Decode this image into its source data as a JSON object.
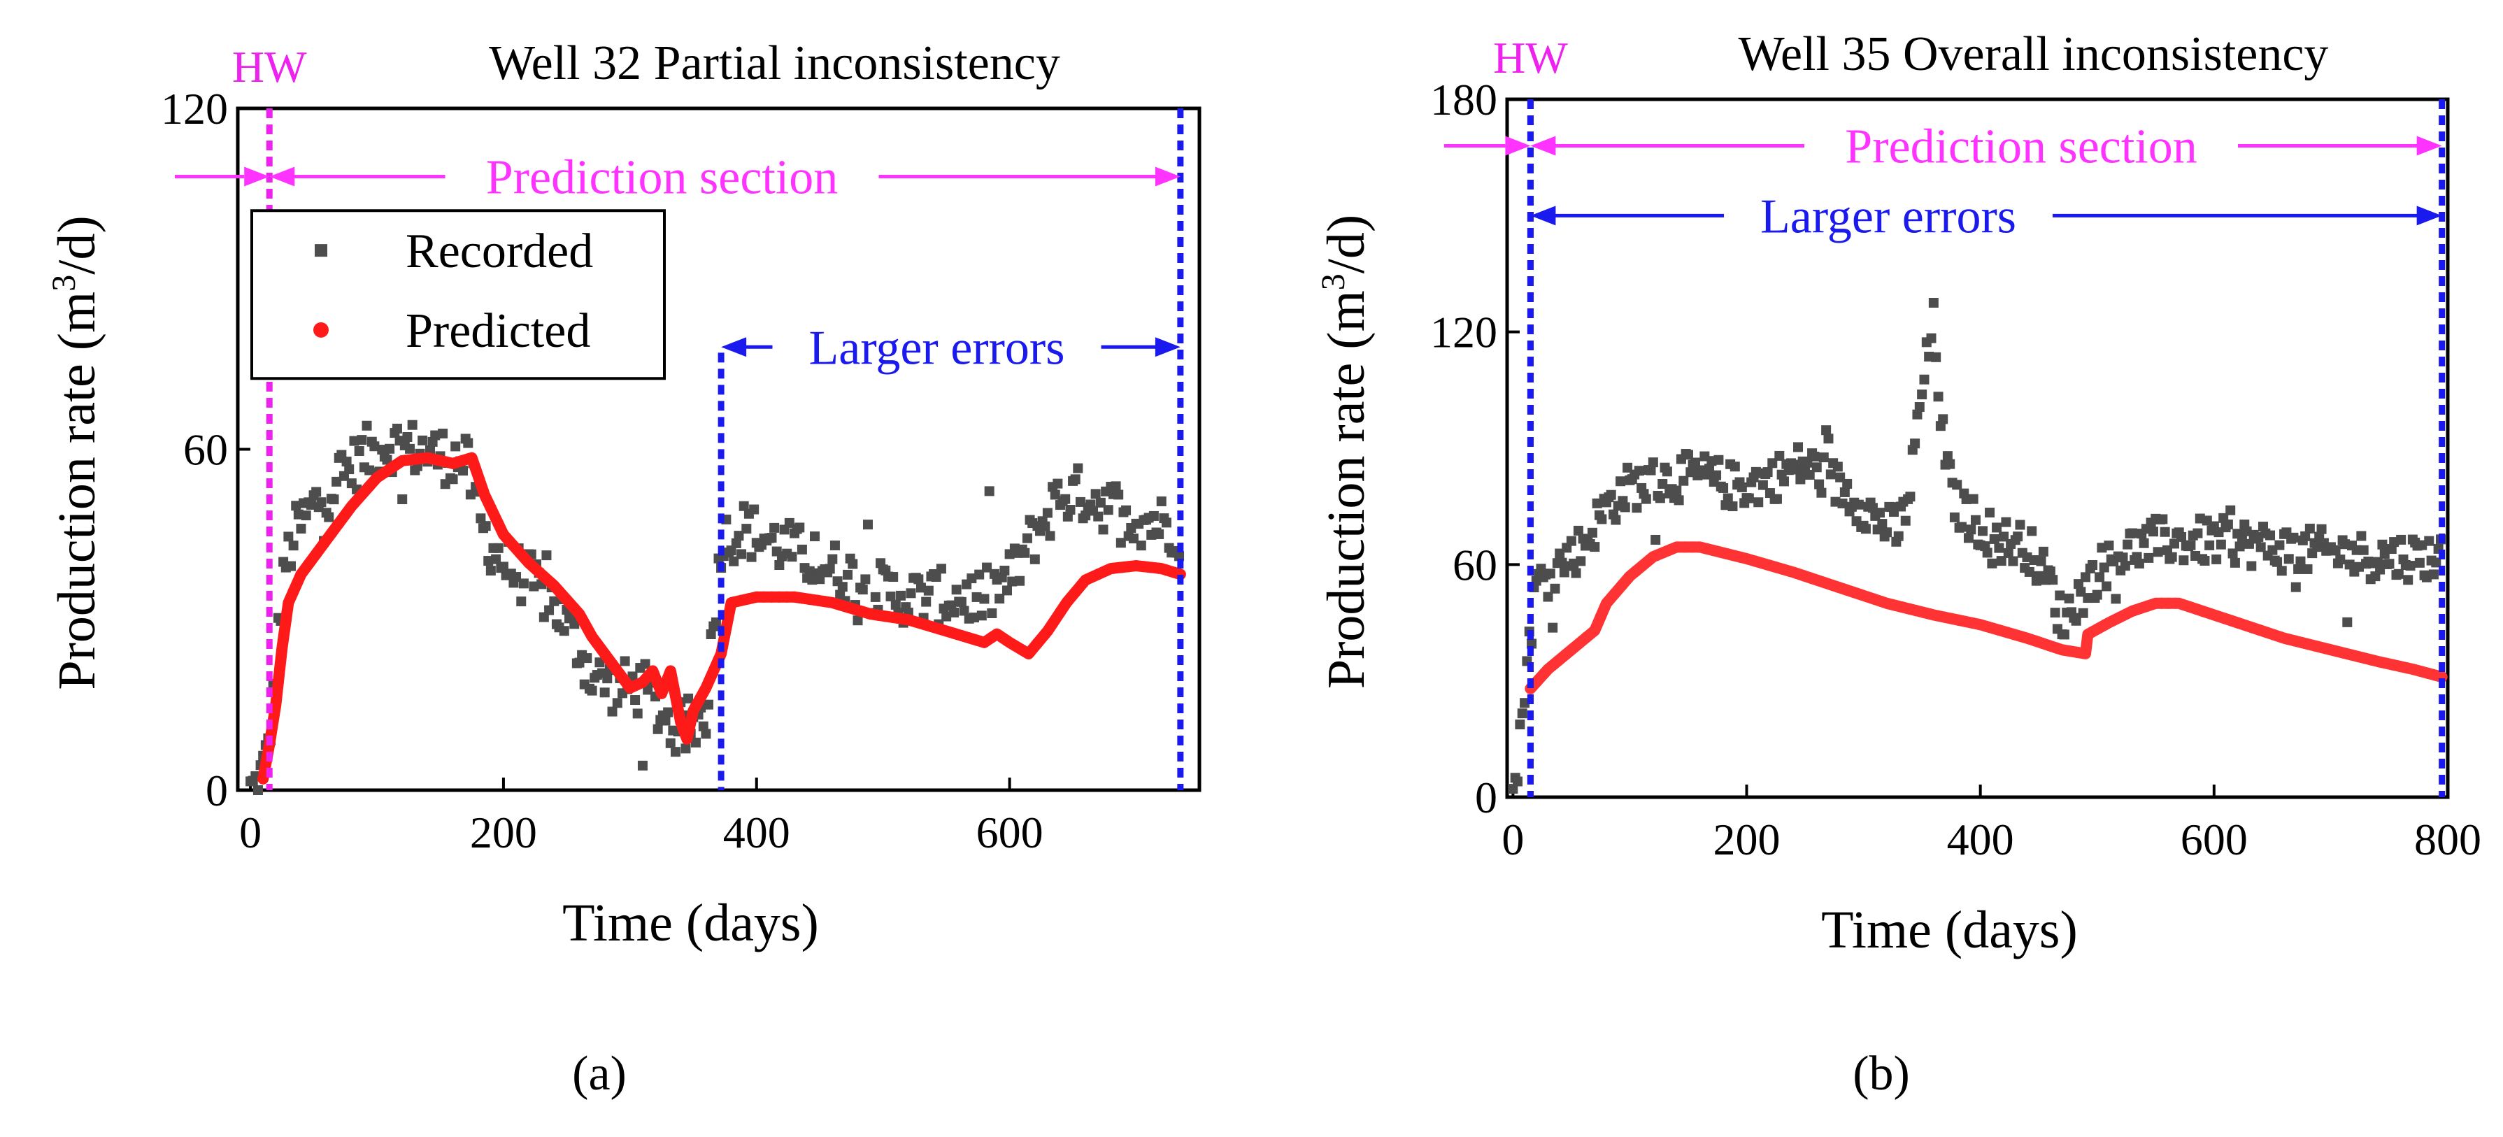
{
  "figure": {
    "panels": [
      {
        "caption": "(a)"
      },
      {
        "caption": "(b)"
      }
    ]
  },
  "chart_data": [
    {
      "type": "scatter",
      "caption": "(a)",
      "title": "Well 32 Partial inconsistency",
      "xlabel": "Time (days)",
      "ylabel_main": "Production rate (m",
      "ylabel_sup": "3",
      "ylabel_tail": "/d)",
      "xlim": [
        -10,
        750
      ],
      "ylim": [
        0,
        120
      ],
      "xticks": [
        0,
        200,
        400,
        600
      ],
      "yticks": [
        0,
        60,
        120
      ],
      "legend": {
        "position": "top-left",
        "entries": [
          "Recorded",
          "Predicted"
        ]
      },
      "colors": {
        "recorded": "#4d4d4d",
        "predicted": "#ff1a1a",
        "hw": "#ee22ee",
        "prediction": "#ff33ff",
        "errors": "#1a1aee"
      },
      "hw": {
        "label": "HW",
        "x": 15
      },
      "prediction_section": {
        "label": "Prediction section",
        "x_start": 15,
        "x_end": 735,
        "y": 108
      },
      "larger_errors": {
        "label": "Larger errors",
        "x_start": 372,
        "x_end": 735,
        "y": 78
      },
      "error_lines_x": [
        372,
        735
      ],
      "series": [
        {
          "name": "Recorded",
          "style": "scatter",
          "key": [
            [
              0,
              0
            ],
            [
              6,
              1
            ],
            [
              12,
              5
            ],
            [
              18,
              15
            ],
            [
              22,
              28
            ],
            [
              28,
              40
            ],
            [
              35,
              45
            ],
            [
              50,
              50
            ],
            [
              70,
              55
            ],
            [
              90,
              59
            ],
            [
              110,
              61
            ],
            [
              130,
              60
            ],
            [
              150,
              59
            ],
            [
              170,
              58
            ],
            [
              185,
              45
            ],
            [
              200,
              40
            ],
            [
              220,
              37
            ],
            [
              240,
              33
            ],
            [
              260,
              25
            ],
            [
              270,
              20
            ],
            [
              290,
              18
            ],
            [
              310,
              18
            ],
            [
              330,
              12
            ],
            [
              345,
              10
            ],
            [
              360,
              14
            ],
            [
              372,
              44
            ],
            [
              390,
              46
            ],
            [
              420,
              43
            ],
            [
              450,
              40
            ],
            [
              480,
              37
            ],
            [
              500,
              35
            ],
            [
              520,
              34
            ],
            [
              550,
              34
            ],
            [
              580,
              34
            ],
            [
              600,
              37
            ],
            [
              620,
              45
            ],
            [
              640,
              52
            ],
            [
              660,
              52
            ],
            [
              680,
              50
            ],
            [
              700,
              48
            ],
            [
              720,
              47
            ],
            [
              735,
              46
            ]
          ],
          "spread": 5
        },
        {
          "name": "Predicted",
          "style": "line",
          "key": [
            [
              10,
              2
            ],
            [
              15,
              8
            ],
            [
              20,
              15
            ],
            [
              25,
              25
            ],
            [
              30,
              33
            ],
            [
              40,
              38
            ],
            [
              60,
              44
            ],
            [
              80,
              50
            ],
            [
              100,
              55
            ],
            [
              120,
              58
            ],
            [
              140,
              58.5
            ],
            [
              160,
              57.5
            ],
            [
              175,
              58.5
            ],
            [
              185,
              52
            ],
            [
              200,
              45
            ],
            [
              220,
              40
            ],
            [
              240,
              36
            ],
            [
              260,
              31
            ],
            [
              270,
              27
            ],
            [
              280,
              24
            ],
            [
              290,
              21
            ],
            [
              300,
              18
            ],
            [
              310,
              19
            ],
            [
              318,
              21
            ],
            [
              325,
              17
            ],
            [
              332,
              21
            ],
            [
              340,
              12
            ],
            [
              345,
              9
            ],
            [
              350,
              14
            ],
            [
              360,
              18
            ],
            [
              372,
              24
            ],
            [
              380,
              33
            ],
            [
              400,
              34
            ],
            [
              430,
              34
            ],
            [
              460,
              33
            ],
            [
              490,
              31
            ],
            [
              520,
              30
            ],
            [
              550,
              28
            ],
            [
              580,
              26
            ],
            [
              590,
              27.5
            ],
            [
              600,
              26
            ],
            [
              615,
              24
            ],
            [
              630,
              28
            ],
            [
              645,
              33
            ],
            [
              660,
              37
            ],
            [
              680,
              39
            ],
            [
              700,
              39.5
            ],
            [
              720,
              39
            ],
            [
              735,
              38
            ]
          ]
        }
      ]
    },
    {
      "type": "scatter",
      "caption": "(b)",
      "title": "Well 35 Overall inconsistency",
      "xlabel": "Time (days)",
      "ylabel_main": "Production rate (m",
      "ylabel_sup": "3",
      "ylabel_tail": "/d)",
      "xlim": [
        -5,
        800
      ],
      "ylim": [
        0,
        180
      ],
      "xticks": [
        0,
        200,
        400,
        600,
        800
      ],
      "yticks": [
        0,
        60,
        120,
        180
      ],
      "legend": null,
      "colors": {
        "recorded": "#4d4d4d",
        "predicted": "#ff3333",
        "hw": "#ee22ee",
        "prediction": "#ff33ff",
        "errors": "#1a1aee"
      },
      "hw": {
        "label": "HW",
        "x": 15
      },
      "prediction_section": {
        "label": "Prediction section",
        "x_start": 15,
        "x_end": 795,
        "y": 168
      },
      "larger_errors": {
        "label": "Larger errors",
        "x_start": 15,
        "x_end": 795,
        "y": 150
      },
      "error_lines_x": [
        15,
        795
      ],
      "series": [
        {
          "name": "Recorded",
          "style": "scatter",
          "key": [
            [
              0,
              0
            ],
            [
              5,
              10
            ],
            [
              10,
              30
            ],
            [
              20,
              55
            ],
            [
              40,
              60
            ],
            [
              60,
              65
            ],
            [
              80,
              75
            ],
            [
              100,
              80
            ],
            [
              130,
              82
            ],
            [
              160,
              83
            ],
            [
              190,
              80
            ],
            [
              220,
              82
            ],
            [
              250,
              86
            ],
            [
              270,
              82
            ],
            [
              290,
              78
            ],
            [
              310,
              72
            ],
            [
              330,
              68
            ],
            [
              340,
              80
            ],
            [
              350,
              105
            ],
            [
              360,
              122
            ],
            [
              370,
              85
            ],
            [
              380,
              75
            ],
            [
              400,
              70
            ],
            [
              420,
              66
            ],
            [
              440,
              65
            ],
            [
              460,
              55
            ],
            [
              470,
              45
            ],
            [
              480,
              50
            ],
            [
              500,
              58
            ],
            [
              520,
              63
            ],
            [
              550,
              66
            ],
            [
              580,
              66
            ],
            [
              620,
              66
            ],
            [
              660,
              64
            ],
            [
              700,
              63
            ],
            [
              740,
              62
            ],
            [
              770,
              62
            ],
            [
              795,
              62
            ]
          ],
          "spread": 6
        },
        {
          "name": "Predicted",
          "style": "line",
          "key": [
            [
              15,
              28
            ],
            [
              30,
              33
            ],
            [
              50,
              38
            ],
            [
              70,
              43
            ],
            [
              80,
              50
            ],
            [
              100,
              57
            ],
            [
              120,
              62
            ],
            [
              140,
              64.5
            ],
            [
              160,
              64.5
            ],
            [
              180,
              63
            ],
            [
              200,
              61.5
            ],
            [
              240,
              58
            ],
            [
              280,
              54
            ],
            [
              320,
              50
            ],
            [
              360,
              47
            ],
            [
              400,
              44.5
            ],
            [
              440,
              41
            ],
            [
              470,
              38
            ],
            [
              490,
              37
            ],
            [
              492,
              42
            ],
            [
              510,
              45
            ],
            [
              530,
              48
            ],
            [
              550,
              50
            ],
            [
              570,
              50
            ],
            [
              590,
              48
            ],
            [
              620,
              45
            ],
            [
              660,
              41
            ],
            [
              700,
              38
            ],
            [
              740,
              35
            ],
            [
              770,
              33
            ],
            [
              795,
              31
            ]
          ]
        }
      ]
    }
  ]
}
